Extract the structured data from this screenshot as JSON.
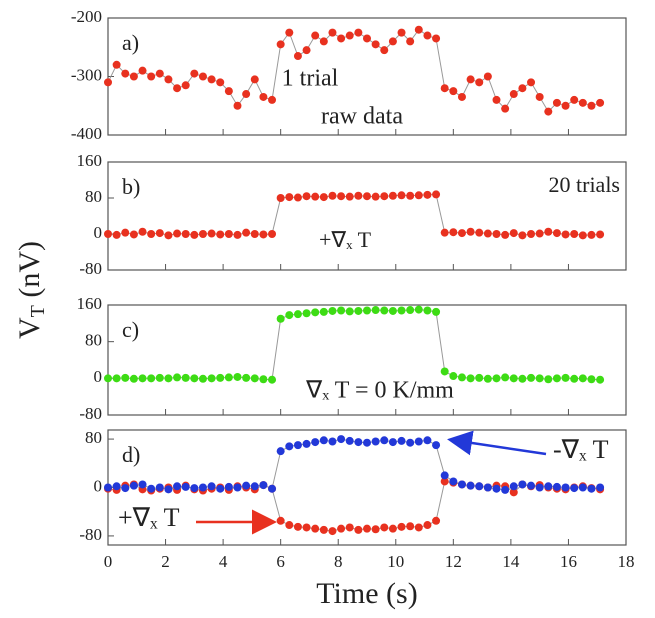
{
  "chart_data": [
    {
      "type": "scatter-line",
      "label": "a)",
      "color": "#e8311f",
      "annotations": [
        "1 trial",
        "raw data"
      ],
      "xlim": [
        0,
        18
      ],
      "ylim": [
        -400,
        -200
      ],
      "yticks": [
        -400,
        -300,
        -200
      ],
      "x": [
        0,
        0.3,
        0.6,
        0.9,
        1.2,
        1.5,
        1.8,
        2.1,
        2.4,
        2.7,
        3.0,
        3.3,
        3.6,
        3.9,
        4.2,
        4.5,
        4.8,
        5.1,
        5.4,
        5.7,
        6.0,
        6.3,
        6.6,
        6.9,
        7.2,
        7.5,
        7.8,
        8.1,
        8.4,
        8.7,
        9.0,
        9.3,
        9.6,
        9.9,
        10.2,
        10.5,
        10.8,
        11.1,
        11.4,
        11.7,
        12.0,
        12.3,
        12.6,
        12.9,
        13.2,
        13.5,
        13.8,
        14.1,
        14.4,
        14.7,
        15.0,
        15.3,
        15.6,
        15.9,
        16.2,
        16.5,
        16.8,
        17.1
      ],
      "values": [
        -310,
        -280,
        -295,
        -300,
        -290,
        -300,
        -295,
        -305,
        -320,
        -315,
        -295,
        -300,
        -305,
        -310,
        -325,
        -350,
        -330,
        -305,
        -335,
        -340,
        -245,
        -225,
        -265,
        -255,
        -230,
        -240,
        -225,
        -235,
        -230,
        -225,
        -235,
        -245,
        -255,
        -240,
        -225,
        -240,
        -220,
        -230,
        -235,
        -320,
        -325,
        -335,
        -305,
        -310,
        -300,
        -340,
        -355,
        -330,
        -320,
        -310,
        -335,
        -360,
        -345,
        -350,
        -340,
        -345,
        -350,
        -345
      ]
    },
    {
      "type": "scatter-line",
      "label": "b)",
      "color": "#e8311f",
      "annotations": [
        "20 trials",
        "+∇ₓ T"
      ],
      "xlim": [
        0,
        18
      ],
      "ylim": [
        -80,
        160
      ],
      "yticks": [
        -80,
        0,
        80,
        160
      ],
      "x": [
        0,
        0.3,
        0.6,
        0.9,
        1.2,
        1.5,
        1.8,
        2.1,
        2.4,
        2.7,
        3.0,
        3.3,
        3.6,
        3.9,
        4.2,
        4.5,
        4.8,
        5.1,
        5.4,
        5.7,
        6.0,
        6.3,
        6.6,
        6.9,
        7.2,
        7.5,
        7.8,
        8.1,
        8.4,
        8.7,
        9.0,
        9.3,
        9.6,
        9.9,
        10.2,
        10.5,
        10.8,
        11.1,
        11.4,
        11.7,
        12.0,
        12.3,
        12.6,
        12.9,
        13.2,
        13.5,
        13.8,
        14.1,
        14.4,
        14.7,
        15.0,
        15.3,
        15.6,
        15.9,
        16.2,
        16.5,
        16.8,
        17.1
      ],
      "values": [
        0,
        -2,
        3,
        -1,
        5,
        0,
        2,
        -3,
        1,
        0,
        -2,
        0,
        1,
        -1,
        0,
        -2,
        3,
        0,
        -1,
        0,
        80,
        82,
        81,
        84,
        83,
        82,
        85,
        84,
        83,
        85,
        84,
        83,
        84,
        85,
        86,
        85,
        86,
        87,
        88,
        3,
        4,
        2,
        5,
        3,
        1,
        0,
        -2,
        2,
        -3,
        0,
        1,
        5,
        2,
        -1,
        0,
        -3,
        -2,
        -1
      ]
    },
    {
      "type": "scatter-line",
      "label": "c)",
      "color": "#3ddc14",
      "annotations": [
        "∇ₓ T = 0 K/mm"
      ],
      "xlim": [
        0,
        18
      ],
      "ylim": [
        -80,
        160
      ],
      "yticks": [
        -80,
        0,
        80,
        160
      ],
      "x": [
        0,
        0.3,
        0.6,
        0.9,
        1.2,
        1.5,
        1.8,
        2.1,
        2.4,
        2.7,
        3.0,
        3.3,
        3.6,
        3.9,
        4.2,
        4.5,
        4.8,
        5.1,
        5.4,
        5.7,
        6.0,
        6.3,
        6.6,
        6.9,
        7.2,
        7.5,
        7.8,
        8.1,
        8.4,
        8.7,
        9.0,
        9.3,
        9.6,
        9.9,
        10.2,
        10.5,
        10.8,
        11.1,
        11.4,
        11.7,
        12.0,
        12.3,
        12.6,
        12.9,
        13.2,
        13.5,
        13.8,
        14.1,
        14.4,
        14.7,
        15.0,
        15.3,
        15.6,
        15.9,
        16.2,
        16.5,
        16.8,
        17.1
      ],
      "values": [
        0,
        0,
        1,
        -1,
        0,
        0,
        1,
        0,
        2,
        1,
        0,
        -1,
        0,
        1,
        2,
        3,
        1,
        0,
        -2,
        -3,
        130,
        138,
        140,
        142,
        144,
        145,
        147,
        148,
        146,
        147,
        148,
        149,
        148,
        147,
        148,
        149,
        150,
        148,
        145,
        15,
        5,
        2,
        0,
        1,
        -1,
        0,
        2,
        0,
        -1,
        1,
        0,
        -2,
        0,
        1,
        -1,
        0,
        -2,
        -3
      ]
    },
    {
      "type": "scatter-line",
      "label": "d)",
      "xlim": [
        0,
        18
      ],
      "ylim": [
        -95,
        95
      ],
      "yticks": [
        -80,
        0,
        80
      ],
      "xticks": [
        0,
        2,
        4,
        6,
        8,
        10,
        12,
        14,
        16,
        18
      ],
      "xlabel": "Time (s)",
      "x": [
        0,
        0.3,
        0.6,
        0.9,
        1.2,
        1.5,
        1.8,
        2.1,
        2.4,
        2.7,
        3.0,
        3.3,
        3.6,
        3.9,
        4.2,
        4.5,
        4.8,
        5.1,
        5.4,
        5.7,
        6.0,
        6.3,
        6.6,
        6.9,
        7.2,
        7.5,
        7.8,
        8.1,
        8.4,
        8.7,
        9.0,
        9.3,
        9.6,
        9.9,
        10.2,
        10.5,
        10.8,
        11.1,
        11.4,
        11.7,
        12.0,
        12.3,
        12.6,
        12.9,
        13.2,
        13.5,
        13.8,
        14.1,
        14.4,
        14.7,
        15.0,
        15.3,
        15.6,
        15.9,
        16.2,
        16.5,
        16.8,
        17.1
      ],
      "series": [
        {
          "name": "+∇ₓ T",
          "color": "#e8311f",
          "values": [
            -2,
            -4,
            3,
            5,
            -3,
            -5,
            -2,
            0,
            -4,
            3,
            -3,
            -5,
            -2,
            0,
            -4,
            2,
            0,
            -3,
            4,
            -2,
            -55,
            -62,
            -65,
            -66,
            -68,
            -70,
            -72,
            -68,
            -66,
            -70,
            -68,
            -69,
            -66,
            -68,
            -65,
            -64,
            -66,
            -62,
            -55,
            10,
            8,
            5,
            3,
            2,
            0,
            3,
            2,
            -8,
            5,
            2,
            4,
            0,
            -2,
            -3,
            0,
            2,
            -1,
            -3
          ]
        },
        {
          "name": "-∇ₓ T",
          "color": "#2238d8",
          "values": [
            0,
            2,
            -1,
            3,
            5,
            -2,
            0,
            -3,
            2,
            1,
            -1,
            0,
            2,
            -2,
            1,
            0,
            3,
            2,
            4,
            -2,
            60,
            68,
            70,
            72,
            75,
            78,
            76,
            80,
            77,
            75,
            74,
            76,
            78,
            75,
            77,
            74,
            76,
            78,
            70,
            20,
            10,
            5,
            3,
            2,
            0,
            -2,
            -4,
            2,
            5,
            3,
            0,
            2,
            1,
            0,
            -1,
            0,
            -2,
            0
          ]
        }
      ]
    }
  ],
  "ylabel": [
    "V",
    "T",
    " (nV)"
  ]
}
